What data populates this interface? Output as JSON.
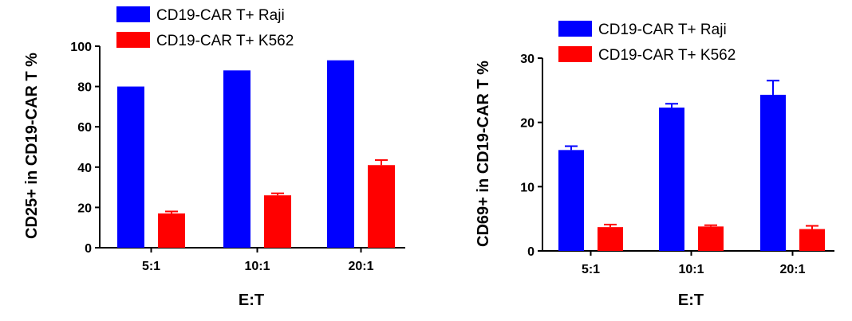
{
  "chart_data": [
    {
      "type": "bar",
      "categories": [
        "5:1",
        "10:1",
        "20:1"
      ],
      "series": [
        {
          "name": "CD19-CAR T+ Raji",
          "color": "#0000ff",
          "values": [
            80,
            88,
            93
          ],
          "errors": [
            0,
            0,
            0
          ]
        },
        {
          "name": "CD19-CAR T+ K562",
          "color": "#ff0000",
          "values": [
            17,
            26,
            41
          ],
          "errors": [
            1,
            1,
            2.5
          ]
        }
      ],
      "xlabel": "E:T",
      "ylabel": "CD25+ in CD19-CAR T %",
      "ylim": [
        0,
        100
      ],
      "yticks": [
        0,
        20,
        40,
        60,
        80,
        100
      ],
      "legend": "top"
    },
    {
      "type": "bar",
      "categories": [
        "5:1",
        "10:1",
        "20:1"
      ],
      "series": [
        {
          "name": "CD19-CAR T+ Raji",
          "color": "#0000ff",
          "values": [
            15.7,
            22.3,
            24.3
          ],
          "errors": [
            0.6,
            0.6,
            2.2
          ]
        },
        {
          "name": "CD19-CAR T+ K562",
          "color": "#ff0000",
          "values": [
            3.7,
            3.8,
            3.4
          ],
          "errors": [
            0.4,
            0.2,
            0.5
          ]
        }
      ],
      "xlabel": "E:T",
      "ylabel": "CD69+ in CD19-CAR T %",
      "ylim": [
        0,
        30
      ],
      "yticks": [
        0,
        10,
        20,
        30
      ],
      "legend": "top"
    }
  ]
}
